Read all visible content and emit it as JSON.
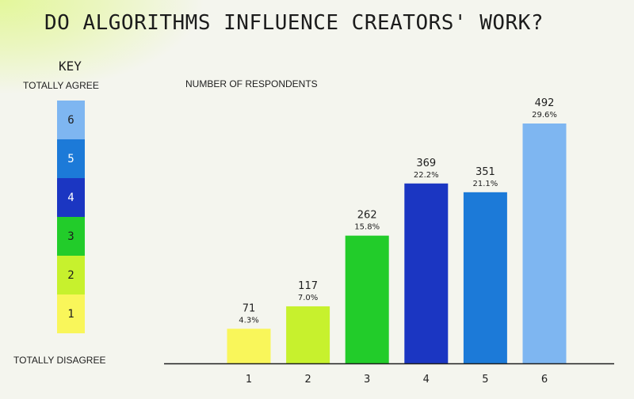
{
  "title": "DO ALGORITHMS INFLUENCE CREATORS' WORK?",
  "key": {
    "title": "KEY",
    "top_label": "TOTALLY AGREE",
    "bottom_label": "TOTALLY DISAGREE",
    "items": [
      {
        "label": "6",
        "color": "#7eb6f1",
        "text_color": "#1e1e1e"
      },
      {
        "label": "5",
        "color": "#1c7ad8",
        "text_color": "#ffffff"
      },
      {
        "label": "4",
        "color": "#1b36c2",
        "text_color": "#ffffff"
      },
      {
        "label": "3",
        "color": "#22cc2a",
        "text_color": "#1e1e1e"
      },
      {
        "label": "2",
        "color": "#c7f12d",
        "text_color": "#1e1e1e"
      },
      {
        "label": "1",
        "color": "#f9f65a",
        "text_color": "#1e1e1e"
      }
    ]
  },
  "chart_data": {
    "type": "bar",
    "ylabel": "NUMBER OF RESPONDENTS",
    "categories": [
      "1",
      "2",
      "3",
      "4",
      "5",
      "6"
    ],
    "values": [
      71,
      117,
      262,
      369,
      351,
      492
    ],
    "percent_labels": [
      "4.3%",
      "7.0%",
      "15.8%",
      "22.2%",
      "21.1%",
      "29.6%"
    ],
    "colors": [
      "#f9f65a",
      "#c7f12d",
      "#22cc2a",
      "#1b36c2",
      "#1c7ad8",
      "#7eb6f1"
    ],
    "ylim": [
      0,
      492
    ],
    "grid": false
  }
}
